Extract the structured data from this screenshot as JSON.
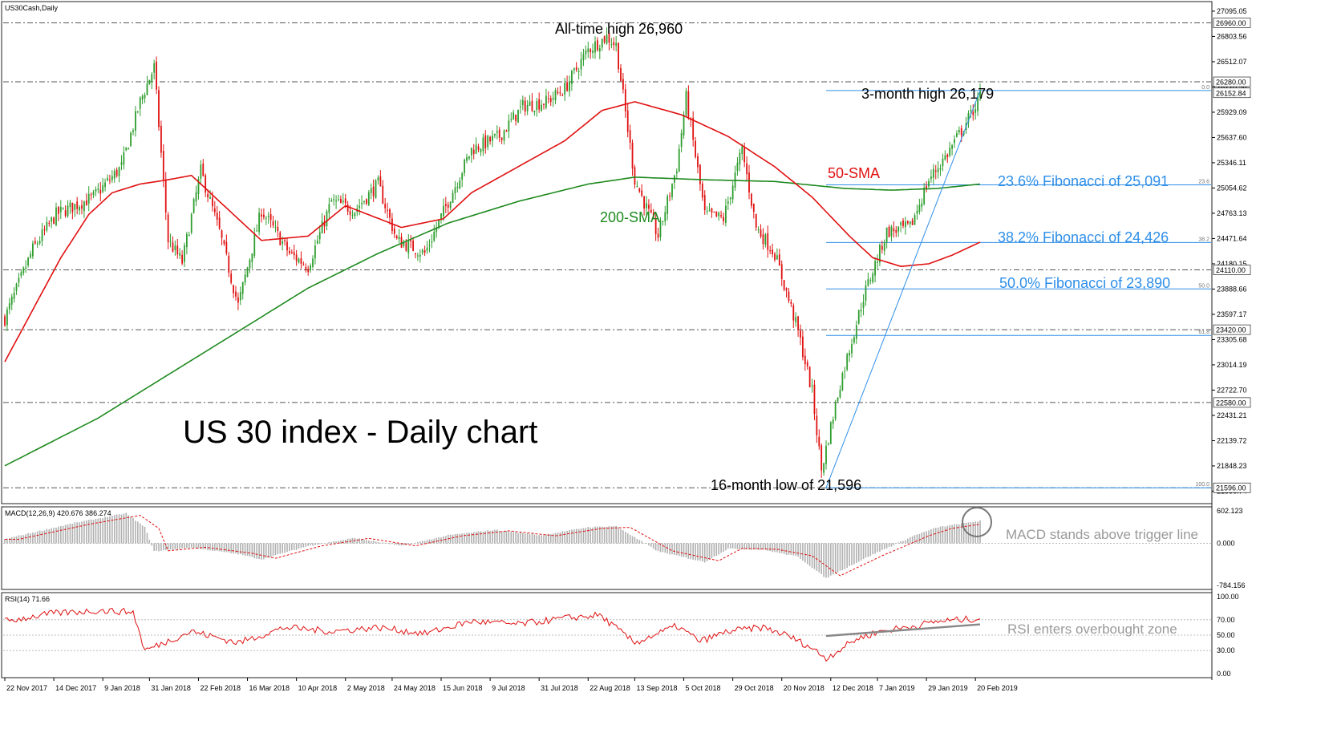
{
  "header": {
    "symbol_label": "US30Cash,Daily",
    "macd_label": "MACD(12,26,9) 420.676 386.274",
    "rsi_label": "RSI(14) 71.66"
  },
  "colors": {
    "bull": "#2e9e2e",
    "bear": "#e01010",
    "sma50": "#e01010",
    "sma200": "#1e8a1e",
    "fib": "#2f8fe8",
    "level_line": "#555555",
    "macd_hist": "#b0b0b0",
    "macd_signal": "#e01010",
    "rsi_line": "#e01010",
    "trendline": "#888888"
  },
  "chart_data": [
    {
      "type": "candlestick",
      "title": "US 30 index - Daily chart",
      "ylim": [
        21450,
        27150
      ],
      "dates": [
        "22 Nov 2017",
        "14 Dec 2017",
        "9 Jan 2018",
        "31 Jan 2018",
        "22 Feb 2018",
        "16 Mar 2018",
        "10 Apr 2018",
        "2 May 2018",
        "24 May 2018",
        "15 Jun 2018",
        "9 Jul 2018",
        "31 Jul 2018",
        "22 Aug 2018",
        "13 Sep 2018",
        "5 Oct 2018",
        "29 Oct 2018",
        "20 Nov 2018",
        "12 Dec 2018",
        "7 Jan 2019",
        "29 Jan 2019",
        "20 Feb 2019"
      ],
      "price_ticks": [
        "27095.05",
        "26803.56",
        "26512.07",
        "26220.58",
        "25929.09",
        "25637.60",
        "25346.11",
        "25054.62",
        "24763.13",
        "24471.64",
        "24180.15",
        "23888.66",
        "23597.17",
        "23305.68",
        "23014.19",
        "22722.70",
        "22431.21",
        "22139.72",
        "21848.23",
        "21556.74"
      ],
      "close_anchors": [
        [
          0,
          23550
        ],
        [
          12,
          24350
        ],
        [
          22,
          24750
        ],
        [
          38,
          24950
        ],
        [
          50,
          25300
        ],
        [
          58,
          26050
        ],
        [
          64,
          26450
        ],
        [
          70,
          24450
        ],
        [
          76,
          24200
        ],
        [
          84,
          25250
        ],
        [
          92,
          24550
        ],
        [
          100,
          23700
        ],
        [
          110,
          24800
        ],
        [
          122,
          24300
        ],
        [
          130,
          24150
        ],
        [
          140,
          24900
        ],
        [
          150,
          24800
        ],
        [
          160,
          25100
        ],
        [
          168,
          24450
        ],
        [
          180,
          24300
        ],
        [
          190,
          24900
        ],
        [
          200,
          25500
        ],
        [
          212,
          25650
        ],
        [
          222,
          26000
        ],
        [
          232,
          26050
        ],
        [
          240,
          26200
        ],
        [
          250,
          26650
        ],
        [
          258,
          26800
        ],
        [
          262,
          26700
        ],
        [
          270,
          25150
        ],
        [
          280,
          24500
        ],
        [
          288,
          25300
        ],
        [
          292,
          26100
        ],
        [
          300,
          24750
        ],
        [
          308,
          24700
        ],
        [
          316,
          25500
        ],
        [
          322,
          24600
        ],
        [
          330,
          24300
        ],
        [
          340,
          23400
        ],
        [
          346,
          22700
        ],
        [
          350,
          21800
        ],
        [
          358,
          22800
        ],
        [
          368,
          23800
        ],
        [
          378,
          24550
        ],
        [
          388,
          24600
        ],
        [
          396,
          25150
        ],
        [
          404,
          25450
        ],
        [
          414,
          25900
        ],
        [
          418,
          26120
        ]
      ],
      "sma50_anchors": [
        [
          0,
          23050
        ],
        [
          12,
          23650
        ],
        [
          24,
          24250
        ],
        [
          36,
          24750
        ],
        [
          46,
          25000
        ],
        [
          58,
          25100
        ],
        [
          70,
          25150
        ],
        [
          80,
          25200
        ],
        [
          94,
          24850
        ],
        [
          110,
          24450
        ],
        [
          130,
          24500
        ],
        [
          146,
          24850
        ],
        [
          170,
          24600
        ],
        [
          188,
          24700
        ],
        [
          200,
          25000
        ],
        [
          220,
          25300
        ],
        [
          240,
          25600
        ],
        [
          256,
          25950
        ],
        [
          270,
          26050
        ],
        [
          290,
          25900
        ],
        [
          310,
          25650
        ],
        [
          330,
          25300
        ],
        [
          346,
          24950
        ],
        [
          362,
          24500
        ],
        [
          372,
          24250
        ],
        [
          384,
          24150
        ],
        [
          396,
          24180
        ],
        [
          406,
          24280
        ],
        [
          418,
          24430
        ]
      ],
      "sma200_anchors": [
        [
          0,
          21850
        ],
        [
          40,
          22400
        ],
        [
          70,
          22900
        ],
        [
          100,
          23400
        ],
        [
          130,
          23900
        ],
        [
          160,
          24300
        ],
        [
          190,
          24650
        ],
        [
          220,
          24900
        ],
        [
          250,
          25100
        ],
        [
          270,
          25180
        ],
        [
          300,
          25150
        ],
        [
          330,
          25130
        ],
        [
          360,
          25050
        ],
        [
          380,
          25030
        ],
        [
          400,
          25050
        ],
        [
          418,
          25100
        ]
      ],
      "levels": [
        26960,
        26280,
        24110,
        23420,
        22580,
        21596
      ],
      "level_labels": [
        "26960.00",
        "26280.00",
        "24110.00",
        "23420.00",
        "22580.00",
        "21596.00"
      ],
      "last_price": {
        "value": 26152.84,
        "label": "26152.84"
      },
      "fibonacci": {
        "start_index": 352,
        "levels": [
          {
            "ratio_label": "0.0",
            "value": 26179
          },
          {
            "ratio_label": "23.6",
            "value": 25091
          },
          {
            "ratio_label": "38.2",
            "value": 24426
          },
          {
            "ratio_label": "50.0",
            "value": 23890
          },
          {
            "ratio_label": "61.8",
            "value": 23354
          },
          {
            "ratio_label": "100.0",
            "value": 21596
          }
        ]
      },
      "fib_trendline": {
        "from": [
          352,
          21596
        ],
        "to": [
          418,
          26179
        ]
      },
      "annotations": {
        "all_time_high": "All-time high 26,960",
        "three_month_high": "3-month high 26,179",
        "sma50": "50-SMA",
        "sma200": "200-SMA",
        "fib236": "23.6% Fibonacci of 25,091",
        "fib382": "38.2% Fibonacci of 24,426",
        "fib500": "50.0% Fibonacci of 23,890",
        "low": "16-month low of 21,596"
      }
    },
    {
      "type": "macd",
      "label": "MACD(12,26,9) 420.676 386.274",
      "ylim": [
        -800,
        620
      ],
      "ticks": [
        "602.123",
        "0.000",
        "-784.156"
      ],
      "main": 420.676,
      "signal": 386.274,
      "macd_anchors": [
        [
          0,
          80
        ],
        [
          30,
          380
        ],
        [
          52,
          560
        ],
        [
          60,
          300
        ],
        [
          64,
          -150
        ],
        [
          80,
          -80
        ],
        [
          100,
          -200
        ],
        [
          110,
          -300
        ],
        [
          130,
          -50
        ],
        [
          150,
          100
        ],
        [
          170,
          -50
        ],
        [
          190,
          150
        ],
        [
          210,
          250
        ],
        [
          230,
          150
        ],
        [
          250,
          300
        ],
        [
          262,
          320
        ],
        [
          280,
          -150
        ],
        [
          300,
          -350
        ],
        [
          310,
          -100
        ],
        [
          325,
          -120
        ],
        [
          340,
          -250
        ],
        [
          352,
          -650
        ],
        [
          370,
          -250
        ],
        [
          390,
          150
        ],
        [
          400,
          300
        ],
        [
          418,
          421
        ]
      ],
      "annotation": "MACD stands above trigger line"
    },
    {
      "type": "rsi",
      "label": "RSI(14) 71.66",
      "ylim": [
        0,
        100
      ],
      "ticks": [
        "100.00",
        "70.00",
        "50.00",
        "30.00",
        "0.00"
      ],
      "levels": [
        70,
        50,
        30
      ],
      "value": 71.66,
      "rsi_anchors": [
        [
          0,
          68
        ],
        [
          20,
          78
        ],
        [
          40,
          82
        ],
        [
          55,
          80
        ],
        [
          60,
          30
        ],
        [
          80,
          55
        ],
        [
          100,
          40
        ],
        [
          120,
          60
        ],
        [
          140,
          55
        ],
        [
          160,
          60
        ],
        [
          180,
          52
        ],
        [
          200,
          68
        ],
        [
          220,
          64
        ],
        [
          240,
          72
        ],
        [
          255,
          76
        ],
        [
          270,
          40
        ],
        [
          288,
          62
        ],
        [
          298,
          42
        ],
        [
          310,
          55
        ],
        [
          325,
          60
        ],
        [
          335,
          50
        ],
        [
          345,
          35
        ],
        [
          352,
          20
        ],
        [
          365,
          45
        ],
        [
          375,
          55
        ],
        [
          390,
          62
        ],
        [
          400,
          68
        ],
        [
          410,
          70
        ],
        [
          418,
          71.66
        ]
      ],
      "trendline": {
        "from": [
          352,
          49
        ],
        "to": [
          418,
          64
        ]
      },
      "annotation": "RSI enters overbought zone"
    }
  ]
}
